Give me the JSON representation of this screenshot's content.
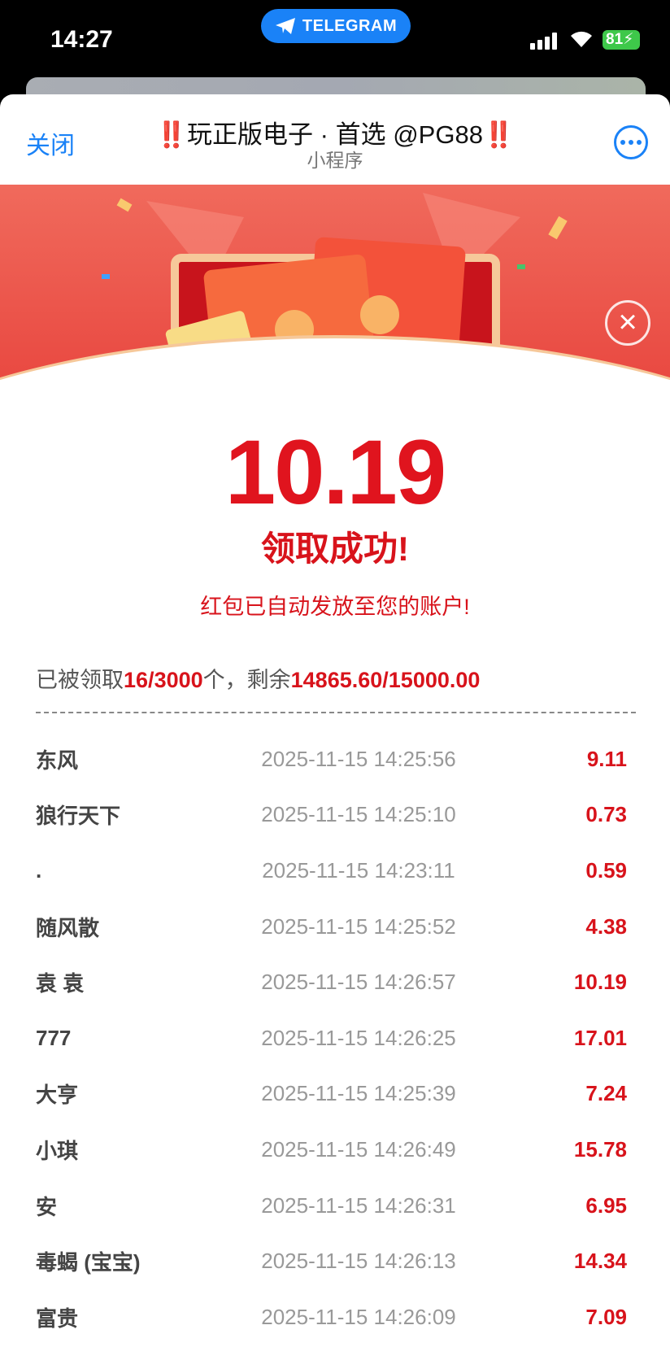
{
  "status": {
    "time": "14:27",
    "pill": "TELEGRAM",
    "battery": "81"
  },
  "header": {
    "close": "关闭",
    "title_mark": "‼️",
    "title": "玩正版电子 · 首选 @PG88",
    "subtitle": "小程序"
  },
  "result": {
    "amount": "10.19",
    "success": "领取成功!",
    "note": "红包已自动发放至您的账户!"
  },
  "summary": {
    "prefix": "已被领取",
    "claimed": "16",
    "sep1": "/",
    "total_count": "3000",
    "mid": "个，剩余",
    "remaining": "14865.60",
    "sep2": "/",
    "total_amount": "15000.00"
  },
  "colors": {
    "accent": "#d8131b",
    "link": "#1a82f7"
  },
  "records": [
    {
      "name": "东风",
      "time": "2025-11-15 14:25:56",
      "amount": "9.11"
    },
    {
      "name": "狼行天下",
      "time": "2025-11-15 14:25:10",
      "amount": "0.73"
    },
    {
      "name": ".",
      "time": "2025-11-15 14:23:11",
      "amount": "0.59"
    },
    {
      "name": "随风散",
      "time": "2025-11-15 14:25:52",
      "amount": "4.38"
    },
    {
      "name": "袁 袁",
      "time": "2025-11-15 14:26:57",
      "amount": "10.19"
    },
    {
      "name": "777",
      "time": "2025-11-15 14:26:25",
      "amount": "17.01"
    },
    {
      "name": "大亨",
      "time": "2025-11-15 14:25:39",
      "amount": "7.24"
    },
    {
      "name": "小琪",
      "time": "2025-11-15 14:26:49",
      "amount": "15.78"
    },
    {
      "name": "安",
      "time": "2025-11-15 14:26:31",
      "amount": "6.95"
    },
    {
      "name": "毒蝎 (宝宝)",
      "time": "2025-11-15 14:26:13",
      "amount": "14.34"
    },
    {
      "name": "富贵",
      "time": "2025-11-15 14:26:09",
      "amount": "7.09"
    }
  ]
}
